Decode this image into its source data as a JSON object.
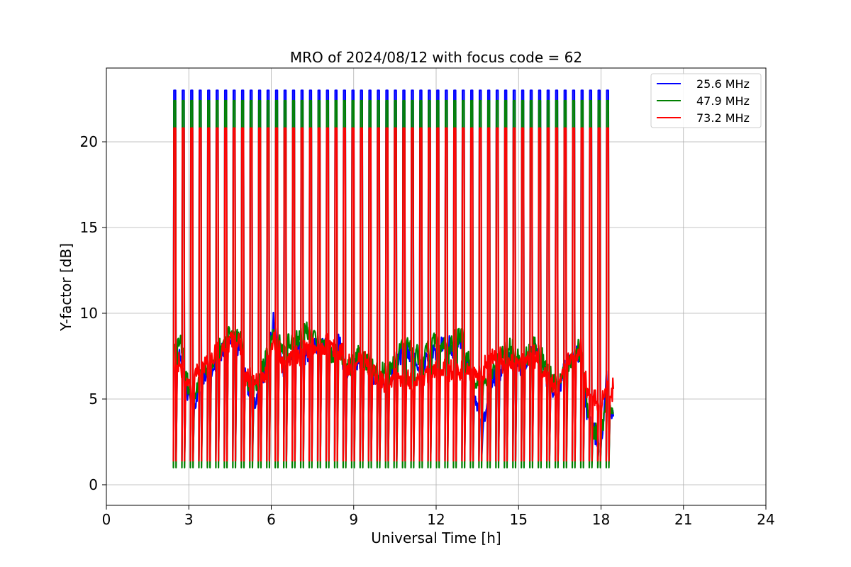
{
  "chart_data": {
    "type": "line",
    "title": "MRO of 2024/08/12 with focus code = 62",
    "xlabel": "Universal Time [h]",
    "ylabel": "Y-factor [dB]",
    "xlim": [
      0,
      24
    ],
    "ylim": [
      -1.2,
      24.3
    ],
    "xticks": [
      0,
      3,
      6,
      9,
      12,
      15,
      18,
      21,
      24
    ],
    "yticks": [
      0,
      5,
      10,
      15,
      20
    ],
    "grid": true,
    "legend_position": "top-right",
    "cal_spikes": {
      "start": 2.5,
      "end": 18.25,
      "count": 52,
      "width_h": 0.06
    },
    "series": [
      {
        "name": "25.6 MHz",
        "color": "#0000ff",
        "spike_high": 23.0,
        "spike_low": 1.4,
        "x": [
          2.45,
          2.7,
          3.0,
          3.2,
          3.5,
          3.8,
          4.0,
          4.3,
          4.6,
          4.9,
          5.1,
          5.4,
          5.6,
          5.9,
          6.1,
          6.4,
          6.7,
          7.0,
          7.3,
          7.6,
          7.9,
          8.2,
          8.5,
          8.7,
          9.0,
          9.3,
          9.6,
          9.9,
          10.2,
          10.5,
          10.8,
          11.1,
          11.4,
          11.7,
          12.0,
          12.3,
          12.6,
          12.9,
          13.2,
          13.4,
          13.7,
          14.0,
          14.3,
          14.6,
          14.9,
          15.2,
          15.5,
          15.8,
          16.1,
          16.4,
          16.7,
          17.0,
          17.3,
          17.5,
          17.8,
          18.0,
          18.2,
          18.45
        ],
        "y": [
          7.0,
          7.5,
          5.0,
          4.5,
          6.5,
          6.0,
          7.5,
          8.0,
          8.5,
          8.0,
          6.0,
          4.8,
          6.0,
          7.5,
          9.5,
          7.0,
          7.5,
          8.0,
          7.5,
          8.0,
          8.0,
          7.5,
          8.5,
          6.0,
          7.0,
          7.5,
          6.5,
          5.8,
          6.0,
          7.0,
          7.8,
          7.5,
          7.0,
          7.5,
          7.8,
          8.0,
          8.0,
          8.5,
          6.5,
          5.0,
          3.5,
          6.0,
          6.5,
          7.5,
          7.0,
          7.0,
          8.0,
          7.5,
          6.0,
          5.0,
          7.0,
          7.5,
          7.5,
          4.0,
          3.0,
          2.0,
          6.0,
          4.2
        ]
      },
      {
        "name": "47.9 MHz",
        "color": "#008000",
        "spike_high": 22.4,
        "spike_low": 1.0,
        "x": [
          2.45,
          2.7,
          3.0,
          3.2,
          3.5,
          3.8,
          4.0,
          4.3,
          4.6,
          4.9,
          5.1,
          5.4,
          5.6,
          5.9,
          6.1,
          6.4,
          6.7,
          7.0,
          7.3,
          7.6,
          7.9,
          8.2,
          8.5,
          8.7,
          9.0,
          9.3,
          9.6,
          9.9,
          10.2,
          10.5,
          10.8,
          11.1,
          11.4,
          11.7,
          12.0,
          12.3,
          12.6,
          12.9,
          13.2,
          13.4,
          13.7,
          14.0,
          14.3,
          14.6,
          14.9,
          15.2,
          15.5,
          15.8,
          16.1,
          16.4,
          16.7,
          17.0,
          17.3,
          17.5,
          17.8,
          18.0,
          18.2,
          18.45
        ],
        "y": [
          8.2,
          8.5,
          5.5,
          5.2,
          6.8,
          6.5,
          7.8,
          8.5,
          9.0,
          8.5,
          6.0,
          5.5,
          6.5,
          8.0,
          9.0,
          8.0,
          8.5,
          8.5,
          9.0,
          8.5,
          8.2,
          7.5,
          7.8,
          6.5,
          7.2,
          7.5,
          7.0,
          6.5,
          6.5,
          7.5,
          8.5,
          7.8,
          7.5,
          8.0,
          8.5,
          8.2,
          8.3,
          9.0,
          7.0,
          6.0,
          5.5,
          6.5,
          7.5,
          8.0,
          7.5,
          7.0,
          8.5,
          7.5,
          6.5,
          5.5,
          6.5,
          7.5,
          8.0,
          4.5,
          3.0,
          2.5,
          5.5,
          4.0
        ]
      },
      {
        "name": "73.2 MHz",
        "color": "#ff0000",
        "spike_high": 20.8,
        "spike_low": 1.4,
        "x": [
          2.45,
          2.7,
          3.0,
          3.2,
          3.5,
          3.8,
          4.0,
          4.3,
          4.6,
          4.9,
          5.1,
          5.4,
          5.6,
          5.9,
          6.1,
          6.4,
          6.7,
          7.0,
          7.3,
          7.6,
          7.9,
          8.2,
          8.5,
          8.7,
          9.0,
          9.3,
          9.6,
          9.9,
          10.2,
          10.5,
          10.8,
          11.1,
          11.4,
          11.7,
          12.0,
          12.3,
          12.6,
          12.9,
          13.2,
          13.4,
          13.7,
          14.0,
          14.3,
          14.6,
          14.9,
          15.2,
          15.5,
          15.8,
          16.1,
          16.4,
          16.7,
          17.0,
          17.3,
          17.5,
          17.8,
          18.0,
          18.2,
          18.45
        ],
        "y": [
          7.5,
          7.0,
          5.8,
          6.0,
          7.0,
          7.2,
          7.8,
          8.0,
          8.5,
          8.0,
          6.2,
          6.0,
          6.0,
          7.0,
          8.5,
          7.2,
          7.5,
          7.5,
          8.0,
          7.8,
          8.0,
          8.2,
          8.0,
          7.0,
          7.0,
          7.2,
          6.8,
          6.0,
          6.0,
          6.5,
          6.2,
          6.0,
          6.0,
          6.5,
          6.5,
          6.8,
          6.5,
          6.5,
          6.5,
          6.8,
          6.5,
          7.5,
          7.5,
          7.0,
          7.2,
          7.0,
          7.5,
          7.0,
          6.0,
          5.5,
          7.0,
          7.5,
          8.0,
          5.5,
          5.0,
          4.5,
          6.0,
          5.5
        ]
      }
    ]
  }
}
